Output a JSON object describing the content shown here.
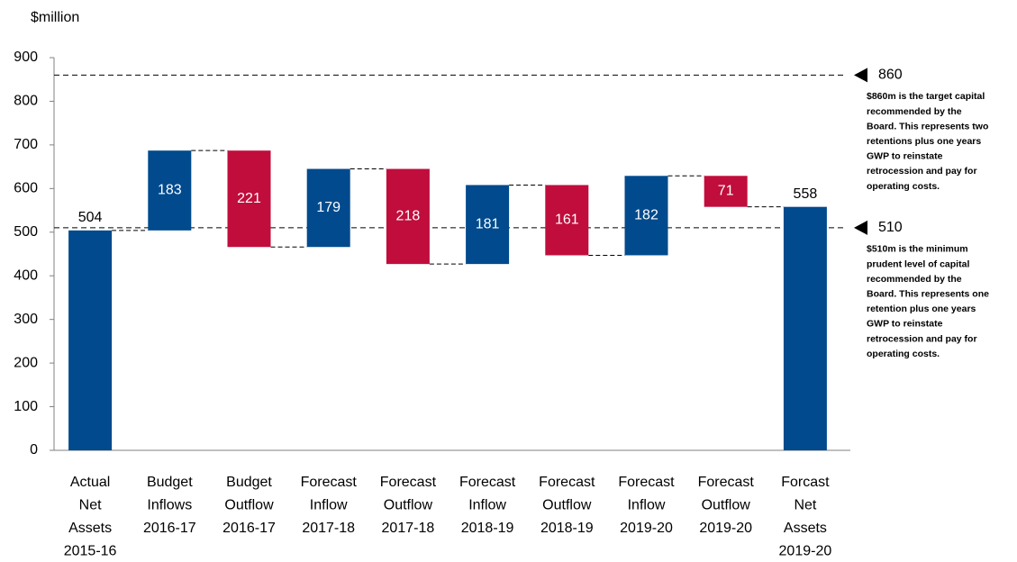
{
  "chart_data": {
    "type": "waterfall",
    "y_axis_label": "$million",
    "categories": [
      [
        "Actual",
        "Net",
        "Assets",
        "2015-16"
      ],
      [
        "Budget",
        "Inflows",
        "2016-17"
      ],
      [
        "Budget",
        "Outflow",
        "2016-17"
      ],
      [
        "Forecast",
        "Inflow",
        "2017-18"
      ],
      [
        "Forecast",
        "Outflow",
        "2017-18"
      ],
      [
        "Forecast",
        "Inflow",
        "2018-19"
      ],
      [
        "Forecast",
        "Outflow",
        "2018-19"
      ],
      [
        "Forecast",
        "Inflow",
        "2019-20"
      ],
      [
        "Forecast",
        "Outflow",
        "2019-20"
      ],
      [
        "Forcast",
        "Net",
        "Assets",
        "2019-20"
      ]
    ],
    "measure": [
      "absolute",
      "relative",
      "relative",
      "relative",
      "relative",
      "relative",
      "relative",
      "relative",
      "relative",
      "total"
    ],
    "values": [
      504,
      183,
      -221,
      179,
      -218,
      181,
      -161,
      182,
      -71,
      558
    ],
    "value_labels": [
      "504",
      "183",
      "221",
      "179",
      "218",
      "181",
      "161",
      "182",
      "71",
      "558"
    ],
    "colors": {
      "total": "#004a8d",
      "increase": "#004a8d",
      "decrease": "#c00d3c"
    },
    "ylim": [
      0,
      900
    ],
    "yticks": [
      0,
      100,
      200,
      300,
      400,
      500,
      600,
      700,
      800,
      900
    ],
    "reference_lines": [
      {
        "value": 860,
        "note": [
          "$860m is the target capital",
          "recommended by the",
          "Board. This represents two",
          "retentions plus one years",
          "GWP to reinstate",
          "retrocession and pay for",
          "operating costs."
        ]
      },
      {
        "value": 510,
        "note": [
          "$510m is the minimum",
          "prudent  level of capital",
          "recommended by the",
          "Board. This represents one",
          "retention plus one years",
          "GWP to reinstate",
          "retrocession and pay for",
          "operating costs."
        ]
      }
    ]
  }
}
